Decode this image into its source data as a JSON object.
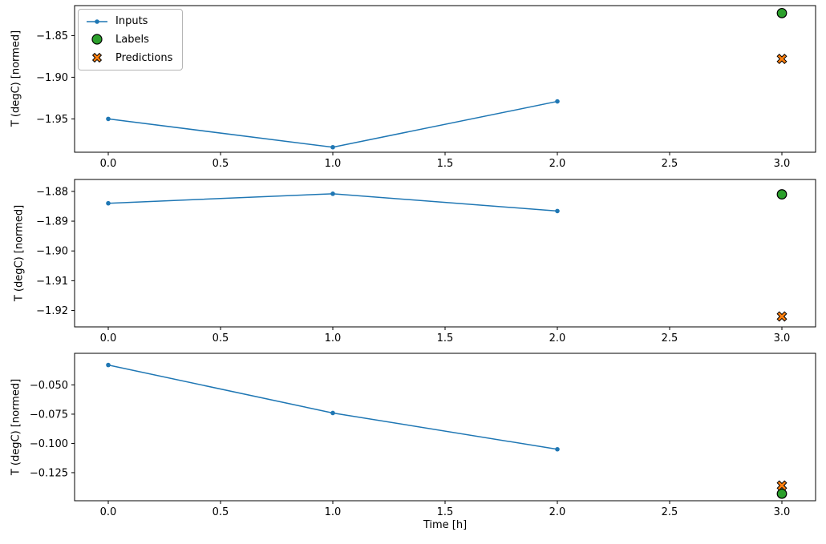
{
  "figure": {
    "background": "#ffffff",
    "xlabel": "Time [h]",
    "ylabel": "T (degC) [normed]",
    "legend": {
      "items": [
        {
          "id": "inputs",
          "label": "Inputs",
          "marker": "line-dot"
        },
        {
          "id": "labels",
          "label": "Labels",
          "marker": "circle"
        },
        {
          "id": "predictions",
          "label": "Predictions",
          "marker": "x-cross"
        }
      ]
    },
    "colors": {
      "inputs": "#1f77b4",
      "labels": "#2ca02c",
      "predictions": "#ff7f0e",
      "axis": "#000000"
    }
  },
  "chart_data": [
    {
      "type": "line",
      "title": "",
      "xlabel": "",
      "ylabel": "T (degC) [normed]",
      "xlim": [
        -0.15,
        3.15
      ],
      "ylim": [
        -1.99,
        -1.814
      ],
      "grid": false,
      "legend_position": "upper-left",
      "xtick_values": [
        0.0,
        0.5,
        1.0,
        1.5,
        2.0,
        2.5,
        3.0
      ],
      "xtick_labels": [
        "0.0",
        "0.5",
        "1.0",
        "1.5",
        "2.0",
        "2.5",
        "3.0"
      ],
      "ytick_values": [
        -1.85,
        -1.9,
        -1.95
      ],
      "ytick_labels": [
        "−1.85",
        "−1.90",
        "−1.95"
      ],
      "series": [
        {
          "name": "Inputs",
          "kind": "line",
          "marker": "dot",
          "color": "#1f77b4",
          "x": [
            0,
            1,
            2
          ],
          "y": [
            -1.95,
            -1.984,
            -1.929
          ]
        },
        {
          "name": "Labels",
          "kind": "scatter",
          "marker": "circle",
          "color": "#2ca02c",
          "x": [
            3
          ],
          "y": [
            -1.823
          ]
        },
        {
          "name": "Predictions",
          "kind": "scatter",
          "marker": "X",
          "color": "#ff7f0e",
          "x": [
            3
          ],
          "y": [
            -1.878
          ]
        }
      ]
    },
    {
      "type": "line",
      "title": "",
      "xlabel": "",
      "ylabel": "T (degC) [normed]",
      "xlim": [
        -0.15,
        3.15
      ],
      "ylim": [
        -1.9255,
        -1.876
      ],
      "grid": false,
      "xtick_values": [
        0.0,
        0.5,
        1.0,
        1.5,
        2.0,
        2.5,
        3.0
      ],
      "xtick_labels": [
        "0.0",
        "0.5",
        "1.0",
        "1.5",
        "2.0",
        "2.5",
        "3.0"
      ],
      "ytick_values": [
        -1.88,
        -1.89,
        -1.9,
        -1.91,
        -1.92
      ],
      "ytick_labels": [
        "−1.88",
        "−1.89",
        "−1.90",
        "−1.91",
        "−1.92"
      ],
      "series": [
        {
          "name": "Inputs",
          "kind": "line",
          "marker": "dot",
          "color": "#1f77b4",
          "x": [
            0,
            1,
            2
          ],
          "y": [
            -1.884,
            -1.8808,
            -1.8866
          ]
        },
        {
          "name": "Labels",
          "kind": "scatter",
          "marker": "circle",
          "color": "#2ca02c",
          "x": [
            3
          ],
          "y": [
            -1.881
          ]
        },
        {
          "name": "Predictions",
          "kind": "scatter",
          "marker": "X",
          "color": "#ff7f0e",
          "x": [
            3
          ],
          "y": [
            -1.922
          ]
        }
      ]
    },
    {
      "type": "line",
      "title": "",
      "xlabel": "Time [h]",
      "ylabel": "T (degC) [normed]",
      "xlim": [
        -0.15,
        3.15
      ],
      "ylim": [
        -0.149,
        -0.023
      ],
      "grid": false,
      "xtick_values": [
        0.0,
        0.5,
        1.0,
        1.5,
        2.0,
        2.5,
        3.0
      ],
      "xtick_labels": [
        "0.0",
        "0.5",
        "1.0",
        "1.5",
        "2.0",
        "2.5",
        "3.0"
      ],
      "ytick_values": [
        -0.05,
        -0.075,
        -0.1,
        -0.125
      ],
      "ytick_labels": [
        "−0.050",
        "−0.075",
        "−0.100",
        "−0.125"
      ],
      "series": [
        {
          "name": "Inputs",
          "kind": "line",
          "marker": "dot",
          "color": "#1f77b4",
          "x": [
            0,
            1,
            2
          ],
          "y": [
            -0.033,
            -0.074,
            -0.105
          ]
        },
        {
          "name": "Labels",
          "kind": "scatter",
          "marker": "circle",
          "color": "#2ca02c",
          "x": [
            3
          ],
          "y": [
            -0.143
          ]
        },
        {
          "name": "Predictions",
          "kind": "scatter",
          "marker": "X",
          "color": "#ff7f0e",
          "x": [
            3
          ],
          "y": [
            -0.136
          ]
        }
      ]
    }
  ]
}
